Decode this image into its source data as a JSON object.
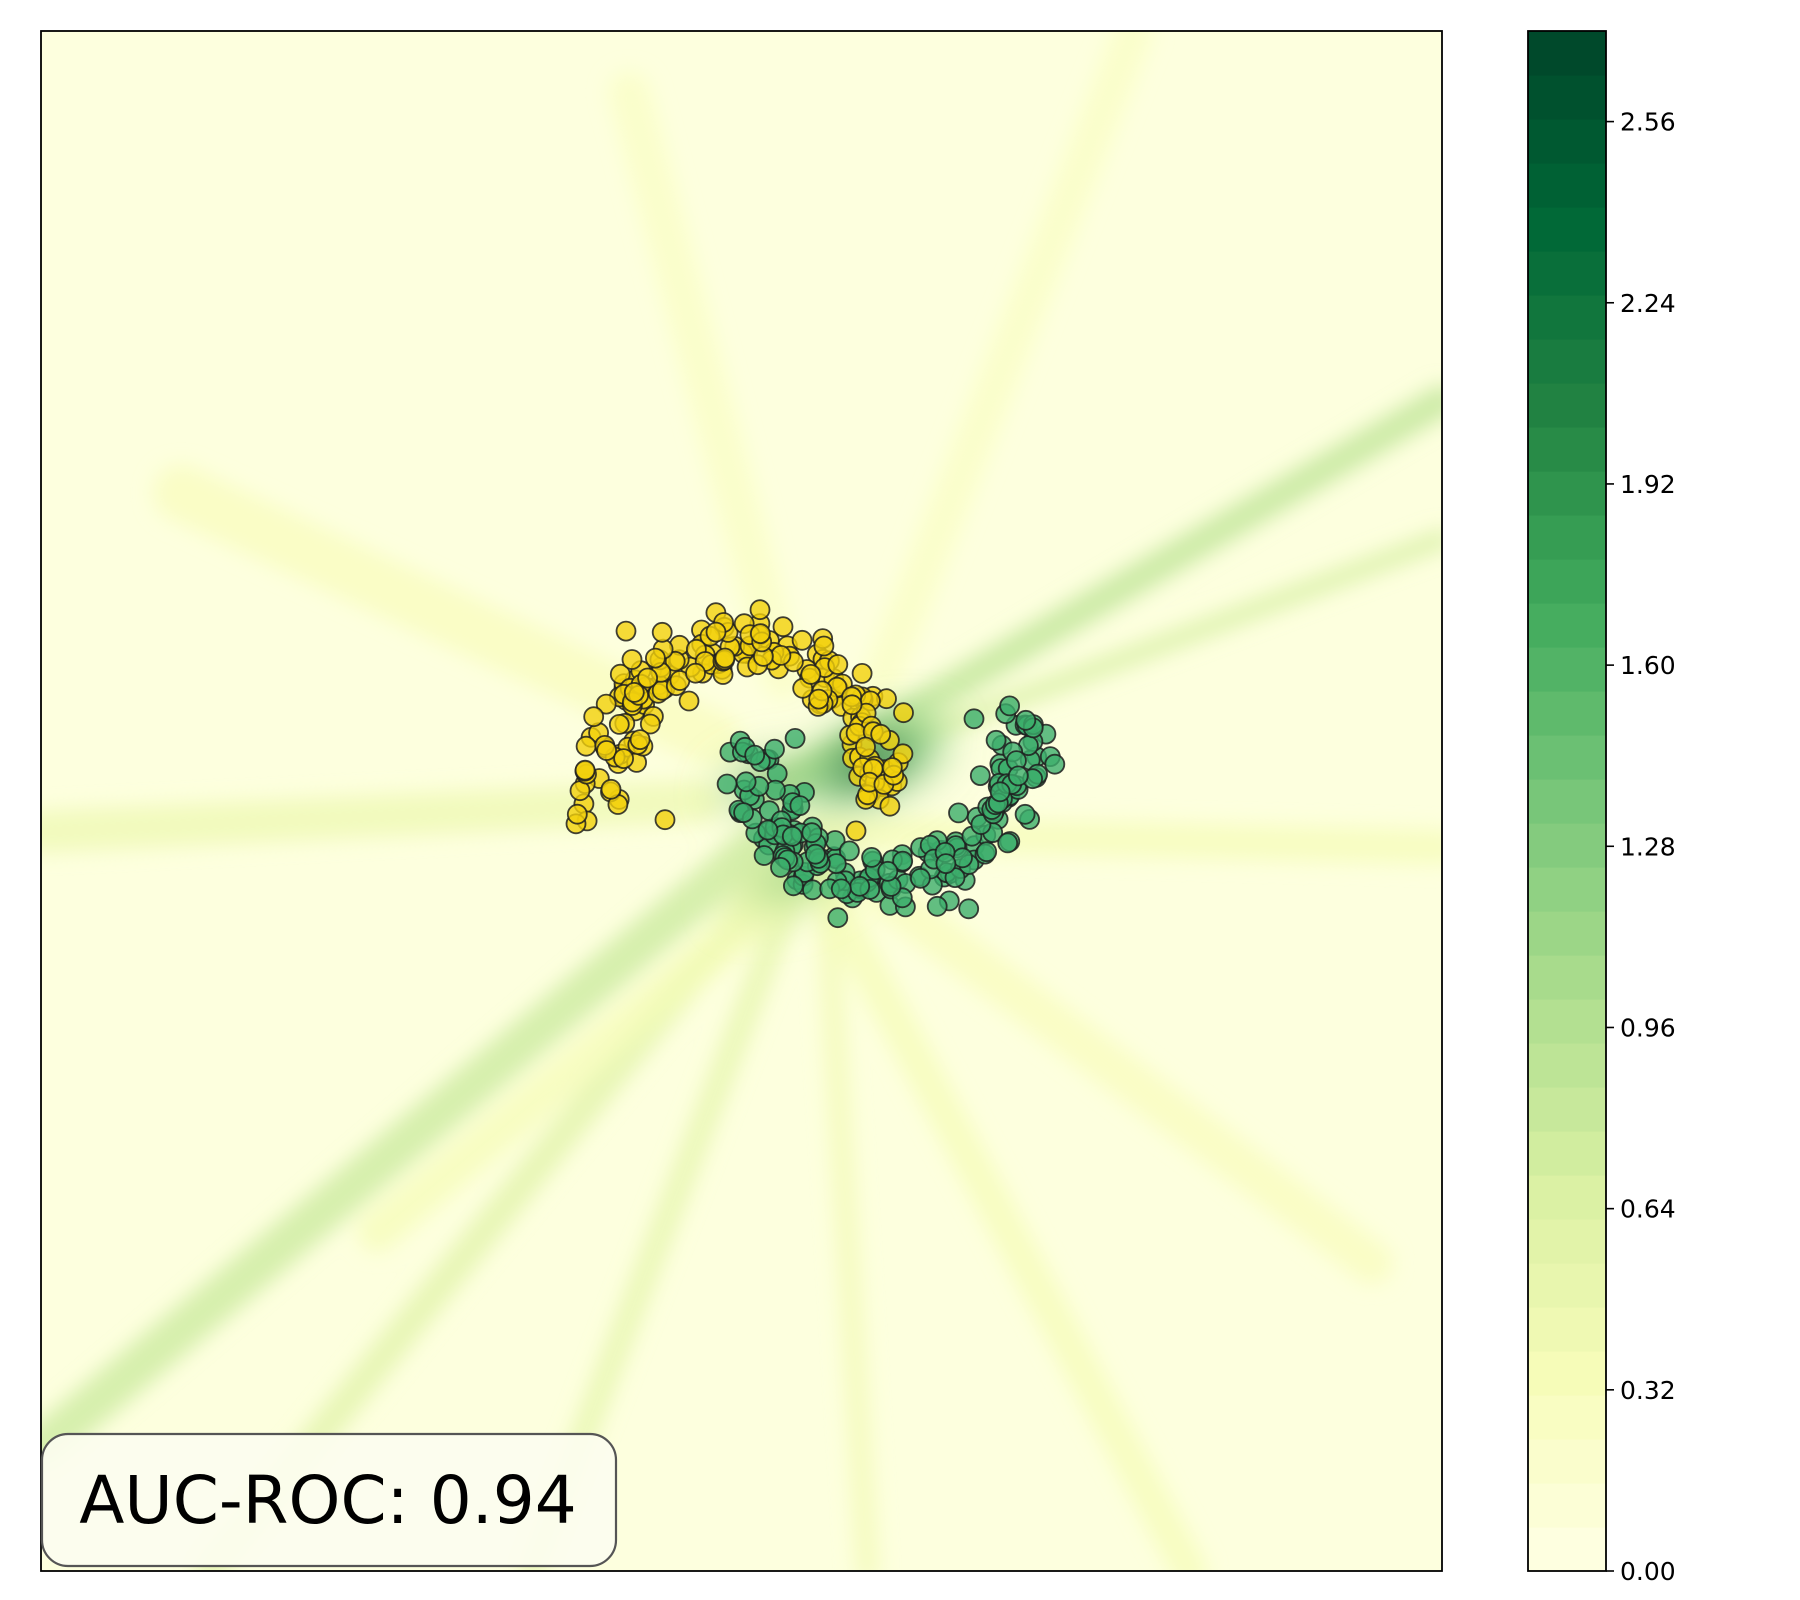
{
  "chart_data": {
    "type": "scatter",
    "title": "",
    "xlabel": "",
    "ylabel": "",
    "background_heatmap": {
      "colormap": "YlGn",
      "colormap_stops": [
        "#ffffe5",
        "#f7fcb9",
        "#d9f0a3",
        "#addd8e",
        "#78c679",
        "#41ab5d",
        "#238443",
        "#006837",
        "#004529"
      ],
      "base_color": "#fdffde",
      "hotspots": [
        {
          "name": "hotspot-main",
          "x": 0.92,
          "y": 0.25,
          "radius": 0.35,
          "intensity": 2.4
        },
        {
          "name": "hotspot-left",
          "x": 0.15,
          "y": 0.12,
          "radius": 0.2,
          "intensity": 1.9
        },
        {
          "name": "hotspot-center",
          "x": 0.35,
          "y": -0.5,
          "radius": 0.3,
          "intensity": 1.2
        }
      ],
      "streaks": [
        {
          "x1": 0.2,
          "y1": 0.05,
          "x2": 5.0,
          "y2": 2.6,
          "width": 0.22,
          "intensity": 0.9
        },
        {
          "x1": 0.9,
          "y1": 0.3,
          "x2": 5.0,
          "y2": 1.7,
          "width": 0.14,
          "intensity": 0.7
        },
        {
          "x1": 0.1,
          "y1": -0.3,
          "x2": -5.0,
          "y2": -4.2,
          "width": 0.3,
          "intensity": 0.8
        },
        {
          "x1": 0.3,
          "y1": -0.4,
          "x2": -3.8,
          "y2": -5.0,
          "width": 0.22,
          "intensity": 0.6
        },
        {
          "x1": 0.4,
          "y1": -0.5,
          "x2": -1.5,
          "y2": -5.0,
          "width": 0.18,
          "intensity": 0.55
        },
        {
          "x1": 0.6,
          "y1": -0.5,
          "x2": 0.9,
          "y2": -5.0,
          "width": 0.16,
          "intensity": 0.4
        },
        {
          "x1": 0.5,
          "y1": -0.4,
          "x2": 3.2,
          "y2": -5.0,
          "width": 0.25,
          "intensity": 0.35
        },
        {
          "x1": 0.5,
          "y1": -0.2,
          "x2": 5.0,
          "y2": -0.3,
          "width": 0.25,
          "intensity": 0.35
        },
        {
          "x1": -0.3,
          "y1": 0.0,
          "x2": -5.0,
          "y2": -0.2,
          "width": 0.3,
          "intensity": 0.45
        },
        {
          "x1": -0.2,
          "y1": 0.4,
          "x2": -4.0,
          "y2": 2.0,
          "width": 0.4,
          "intensity": 0.3
        },
        {
          "x1": 0.3,
          "y1": 0.8,
          "x2": -0.8,
          "y2": 4.6,
          "width": 0.3,
          "intensity": 0.25
        },
        {
          "x1": 1.0,
          "y1": 0.8,
          "x2": 2.8,
          "y2": 5.0,
          "width": 0.28,
          "intensity": 0.25
        },
        {
          "x1": 1.0,
          "y1": -0.6,
          "x2": 4.5,
          "y2": -3.0,
          "width": 0.3,
          "intensity": 0.3
        },
        {
          "x1": 0.3,
          "y1": -0.6,
          "x2": -2.6,
          "y2": -2.8,
          "width": 0.28,
          "intensity": 0.35
        }
      ]
    },
    "series": [
      {
        "class": 0,
        "color": "#f2d10c",
        "moon": {
          "cx": 0.0,
          "cy": 0.0,
          "r": 1.0,
          "theta_start": 0,
          "theta_end": 180,
          "count": 200,
          "noise": 0.12,
          "seed": 7
        }
      },
      {
        "class": 1,
        "color": "#3cae6b",
        "moon": {
          "cx": 1.0,
          "cy": 0.5,
          "r": 1.0,
          "theta_start": 180,
          "theta_end": 360,
          "count": 200,
          "noise": 0.12,
          "seed": 11
        }
      }
    ],
    "xlim": [
      -5.0,
      5.0
    ],
    "ylim": [
      -5.0,
      5.0
    ],
    "grid": false,
    "colorbar": {
      "ticks": [
        "0.00",
        "0.32",
        "0.64",
        "0.96",
        "1.28",
        "1.60",
        "1.92",
        "2.24",
        "2.56"
      ],
      "range": [
        0.0,
        2.72
      ],
      "levels": 35
    },
    "annotation": {
      "text": "AUC-ROC: 0.94",
      "placement": "bottom-left"
    }
  }
}
